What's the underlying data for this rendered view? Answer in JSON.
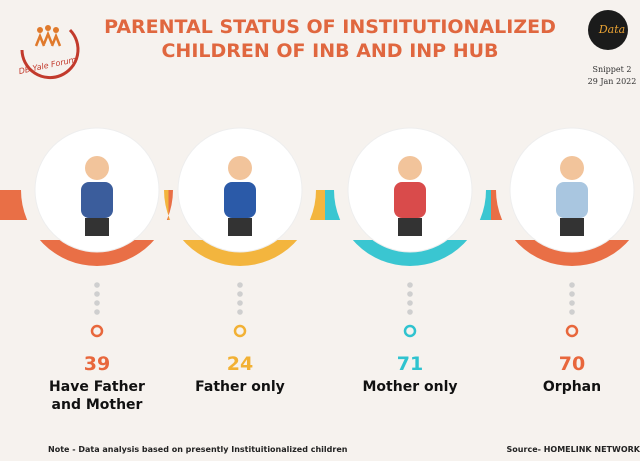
{
  "header": {
    "title_lines": [
      "PARENTAL STATUS OF INSTITUTIONALIZED",
      "CHILDREN OF INB AND INP HUB"
    ],
    "logo_left": "DB Yale Forum",
    "logo_right": "Data",
    "snippet": "Snippet 2",
    "date": "29 Jan 2022"
  },
  "items": [
    {
      "value": "39",
      "label_lines": [
        "Have Father",
        "and  Mother"
      ],
      "color": "#e8673c"
    },
    {
      "value": "24",
      "label_lines": [
        "Father only"
      ],
      "color": "#f2b134"
    },
    {
      "value": "71",
      "label_lines": [
        "Mother only"
      ],
      "color": "#2fc3cf"
    },
    {
      "value": "70",
      "label_lines": [
        "Orphan"
      ],
      "color": "#e8673c"
    }
  ],
  "footer": {
    "note": "Note - Data analysis based on presently Instituitionalized children",
    "source": "Source- HOMELINK NETWORK"
  }
}
